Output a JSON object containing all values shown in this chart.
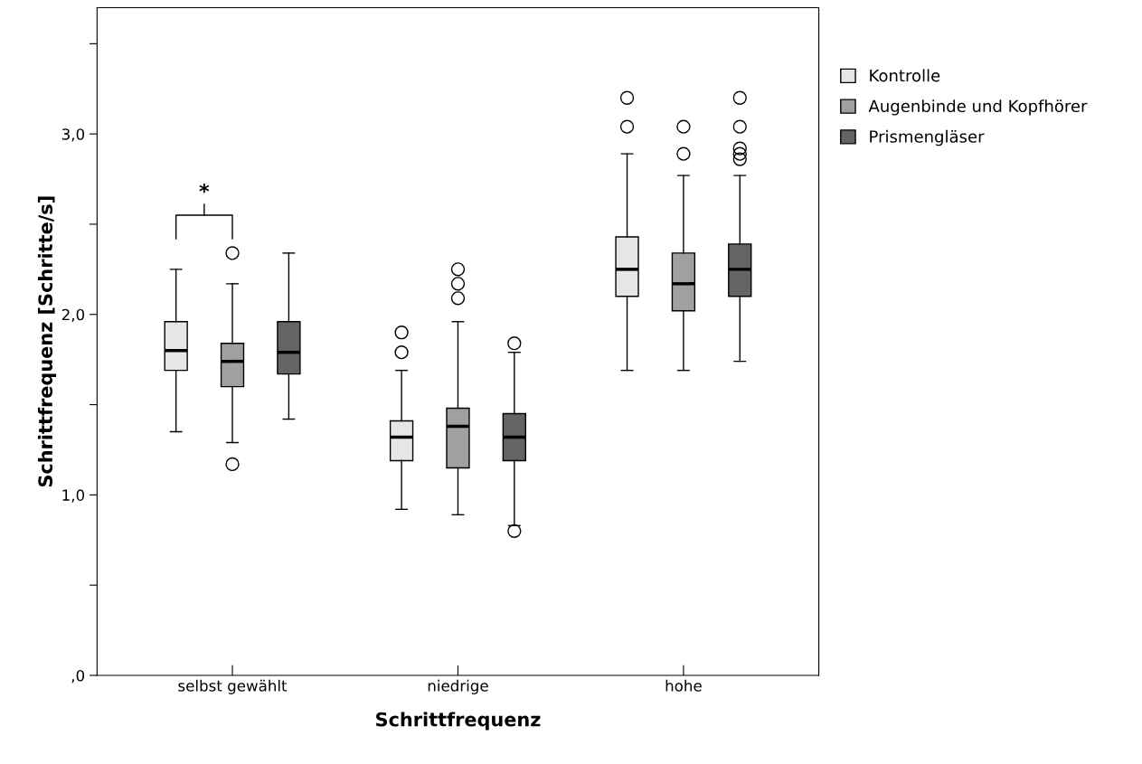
{
  "chart_data": {
    "type": "box",
    "xlabel": "Schrittfrequenz",
    "ylabel": "Schrittfrequenz [Schritte/s]",
    "categories": [
      "selbst gewählt",
      "niedrige",
      "hohe"
    ],
    "ylim": [
      0,
      3.7
    ],
    "yticks": [
      {
        "value": 0,
        "label": ",0"
      },
      {
        "value": 0.5,
        "label": null
      },
      {
        "value": 1.0,
        "label": "1,0"
      },
      {
        "value": 1.5,
        "label": null
      },
      {
        "value": 2.0,
        "label": "2,0"
      },
      {
        "value": 2.5,
        "label": null
      },
      {
        "value": 3.0,
        "label": "3,0"
      },
      {
        "value": 3.5,
        "label": null
      }
    ],
    "grid": false,
    "legend": "right",
    "marker": "circle",
    "annotations": [
      "*"
    ],
    "series": [
      {
        "name": "Kontrolle",
        "color": "#e6e6e6",
        "boxes": [
          {
            "low": 1.35,
            "q1": 1.69,
            "median": 1.8,
            "q3": 1.96,
            "high": 2.25
          },
          {
            "low": 0.92,
            "q1": 1.19,
            "median": 1.32,
            "q3": 1.41,
            "high": 1.69,
            "outliers": [
              1.79,
              1.9
            ]
          },
          {
            "low": 1.69,
            "q1": 2.1,
            "median": 2.25,
            "q3": 2.43,
            "high": 2.89,
            "outliers": [
              3.04,
              3.2
            ]
          }
        ]
      },
      {
        "name": "Augenbinde und Kopfhörer",
        "color": "#a0a0a0",
        "boxes": [
          {
            "low": 1.29,
            "q1": 1.6,
            "median": 1.74,
            "q3": 1.84,
            "high": 2.17,
            "outliers": [
              1.17,
              2.34
            ]
          },
          {
            "low": 0.89,
            "q1": 1.15,
            "median": 1.38,
            "q3": 1.48,
            "high": 1.96,
            "outliers": [
              2.09,
              2.17,
              2.25
            ]
          },
          {
            "low": 1.69,
            "q1": 2.02,
            "median": 2.17,
            "q3": 2.34,
            "high": 2.77,
            "outliers": [
              2.89,
              3.04
            ]
          }
        ]
      },
      {
        "name": "Prismengläser",
        "color": "#646464",
        "boxes": [
          {
            "low": 1.42,
            "q1": 1.67,
            "median": 1.79,
            "q3": 1.96,
            "high": 2.34
          },
          {
            "low": 0.83,
            "q1": 1.19,
            "median": 1.32,
            "q3": 1.45,
            "high": 1.79,
            "outliers": [
              0.8,
              1.84
            ]
          },
          {
            "low": 1.74,
            "q1": 2.1,
            "median": 2.25,
            "q3": 2.39,
            "high": 2.77,
            "outliers": [
              2.86,
              2.89,
              2.92,
              3.04,
              3.2
            ]
          }
        ]
      }
    ]
  }
}
